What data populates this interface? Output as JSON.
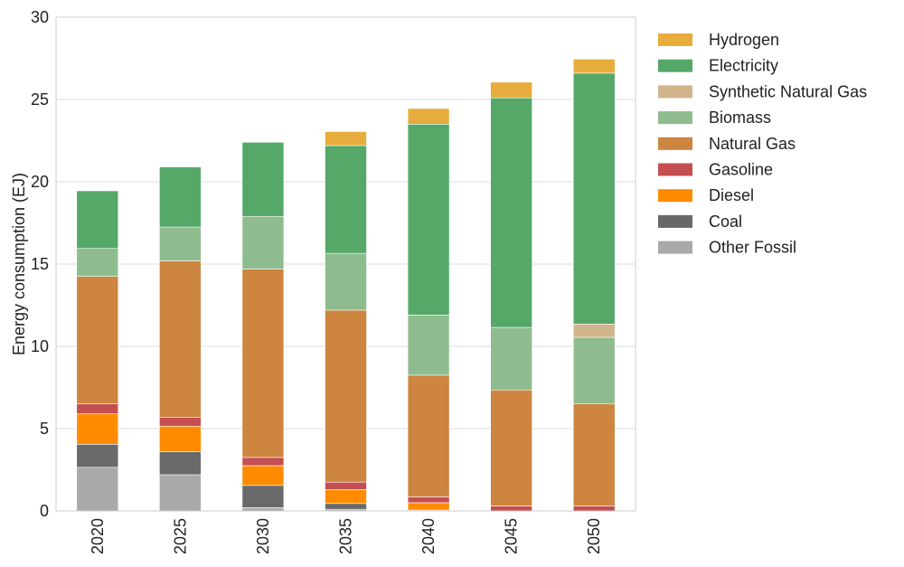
{
  "chart_data": {
    "type": "bar",
    "stacked": true,
    "title": "",
    "xlabel": "",
    "ylabel": "Energy consumption (EJ)",
    "ylim": [
      0,
      30
    ],
    "yticks": [
      0,
      5,
      10,
      15,
      20,
      25,
      30
    ],
    "grid": true,
    "legend_position": "outside right",
    "categories": [
      "2020",
      "2025",
      "2030",
      "2035",
      "2040",
      "2045",
      "2050"
    ],
    "series": [
      {
        "name": "Other Fossil",
        "color": "#a9a9a9",
        "values": [
          2.65,
          2.2,
          0.2,
          0.1,
          0.0,
          0.0,
          0.0
        ]
      },
      {
        "name": "Coal",
        "color": "#696969",
        "values": [
          1.4,
          1.4,
          1.35,
          0.35,
          0.05,
          0.0,
          0.0
        ]
      },
      {
        "name": "Diesel",
        "color": "#ff8c00",
        "values": [
          1.85,
          1.55,
          1.2,
          0.85,
          0.45,
          0.0,
          0.0
        ]
      },
      {
        "name": "Gasoline",
        "color": "#c44e52",
        "values": [
          0.6,
          0.55,
          0.5,
          0.45,
          0.35,
          0.3,
          0.3
        ]
      },
      {
        "name": "Natural Gas",
        "color": "#cd853f",
        "values": [
          7.75,
          9.5,
          11.45,
          10.45,
          7.4,
          7.05,
          6.2
        ]
      },
      {
        "name": "Biomass",
        "color": "#8fbc8f",
        "values": [
          1.7,
          2.05,
          3.2,
          3.45,
          3.65,
          3.8,
          4.05
        ]
      },
      {
        "name": "Synthetic Natural Gas",
        "color": "#d2b48c",
        "values": [
          0.0,
          0.0,
          0.0,
          0.0,
          0.0,
          0.0,
          0.8
        ]
      },
      {
        "name": "Electricity",
        "color": "#55a868",
        "values": [
          3.5,
          3.65,
          4.5,
          6.55,
          11.6,
          13.95,
          15.25
        ]
      },
      {
        "name": "Hydrogen",
        "color": "#e6ac3c",
        "values": [
          0.0,
          0.0,
          0.0,
          0.85,
          0.95,
          0.95,
          0.85
        ]
      }
    ]
  }
}
